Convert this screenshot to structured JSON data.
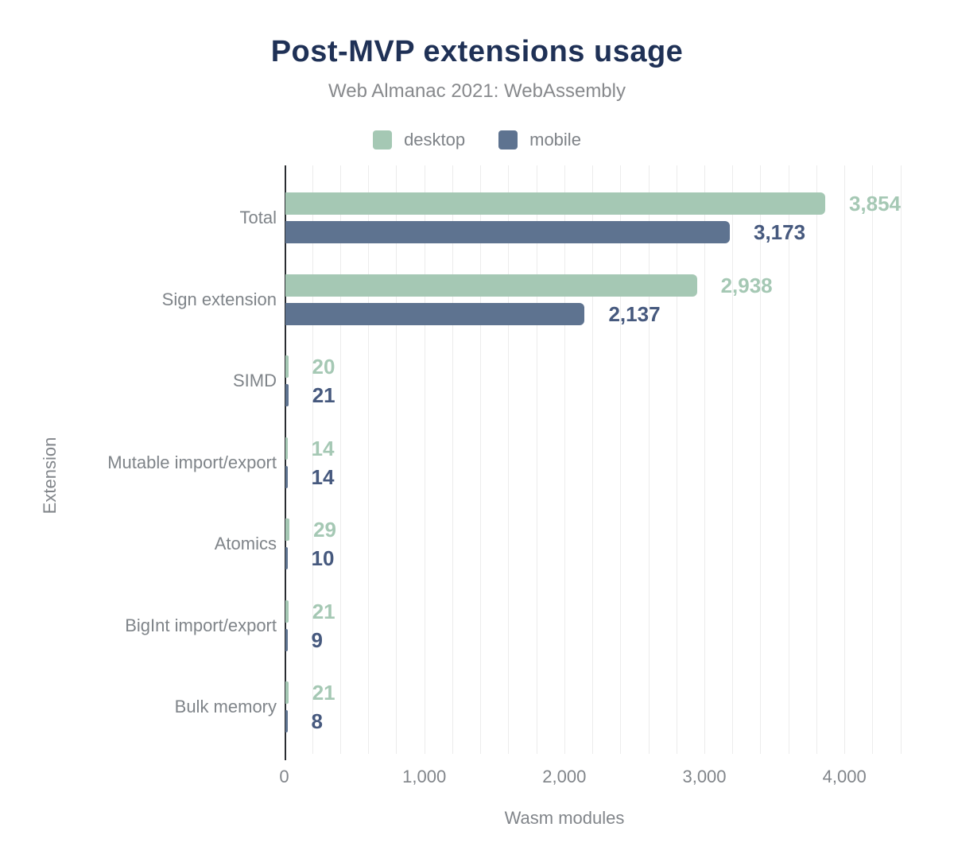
{
  "header": {
    "title": "Post-MVP extensions usage",
    "subtitle": "Web Almanac 2021: WebAssembly"
  },
  "legend": [
    {
      "label": "desktop",
      "color": "#a5c8b4"
    },
    {
      "label": "mobile",
      "color": "#5e7390"
    }
  ],
  "chart_data": {
    "type": "bar",
    "orientation": "horizontal",
    "title": "Post-MVP extensions usage",
    "subtitle": "Web Almanac 2021: WebAssembly",
    "categories": [
      "Total",
      "Sign extension",
      "SIMD",
      "Mutable import/export",
      "Atomics",
      "BigInt import/export",
      "Bulk memory"
    ],
    "series": [
      {
        "name": "desktop",
        "color": "#a5c8b4",
        "label_color": "#a5c8b4",
        "values": [
          3854,
          2938,
          20,
          14,
          29,
          21,
          21
        ]
      },
      {
        "name": "mobile",
        "color": "#5e7390",
        "label_color": "#46597e",
        "values": [
          3173,
          2137,
          21,
          14,
          10,
          9,
          8
        ]
      }
    ],
    "xlabel": "Wasm modules",
    "ylabel": "Extension",
    "xlim": [
      0,
      4500
    ],
    "x_ticks": [
      0,
      1000,
      2000,
      3000,
      4000
    ],
    "gridline_step": 200,
    "grid": "vertical-light",
    "legend_position": "top",
    "value_labels": "outside-end"
  },
  "colors": {
    "title": "#1f3156",
    "subtitle_gray": "#87898c",
    "label_gray": "#7f8489",
    "axis_line": "#2a2d31",
    "gridline": "#ececec",
    "background": "#ffffff"
  }
}
